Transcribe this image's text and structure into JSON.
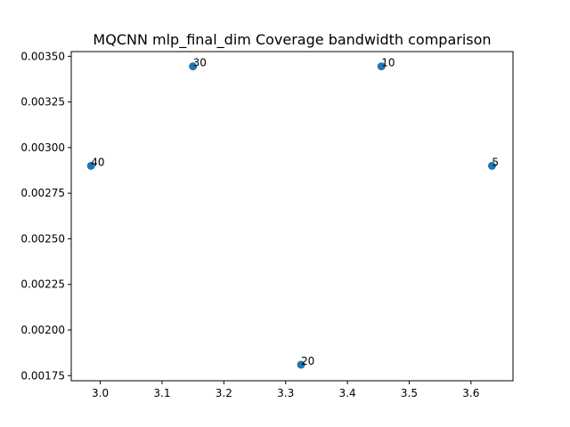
{
  "chart_data": {
    "type": "scatter",
    "title": "MQCNN mlp_final_dim Coverage bandwidth comparison",
    "xlabel": "",
    "ylabel": "",
    "xlim": [
      2.953,
      3.668
    ],
    "ylim": [
      0.001722,
      0.003526
    ],
    "grid": false,
    "marker_color": "#1f77b4",
    "xticks": [
      {
        "value": 3.0,
        "label": "3.0"
      },
      {
        "value": 3.1,
        "label": "3.1"
      },
      {
        "value": 3.2,
        "label": "3.2"
      },
      {
        "value": 3.3,
        "label": "3.3"
      },
      {
        "value": 3.4,
        "label": "3.4"
      },
      {
        "value": 3.5,
        "label": "3.5"
      },
      {
        "value": 3.6,
        "label": "3.6"
      }
    ],
    "yticks": [
      {
        "value": 0.00175,
        "label": "0.00175"
      },
      {
        "value": 0.002,
        "label": "0.00200"
      },
      {
        "value": 0.00225,
        "label": "0.00225"
      },
      {
        "value": 0.0025,
        "label": "0.00250"
      },
      {
        "value": 0.00275,
        "label": "0.00275"
      },
      {
        "value": 0.003,
        "label": "0.00300"
      },
      {
        "value": 0.00325,
        "label": "0.00325"
      },
      {
        "value": 0.0035,
        "label": "0.00350"
      }
    ],
    "points": [
      {
        "label": "40",
        "x": 2.985,
        "y": 0.0029
      },
      {
        "label": "30",
        "x": 3.15,
        "y": 0.003445
      },
      {
        "label": "20",
        "x": 3.325,
        "y": 0.00181
      },
      {
        "label": "10",
        "x": 3.455,
        "y": 0.003445
      },
      {
        "label": "5",
        "x": 3.634,
        "y": 0.0029
      }
    ]
  }
}
